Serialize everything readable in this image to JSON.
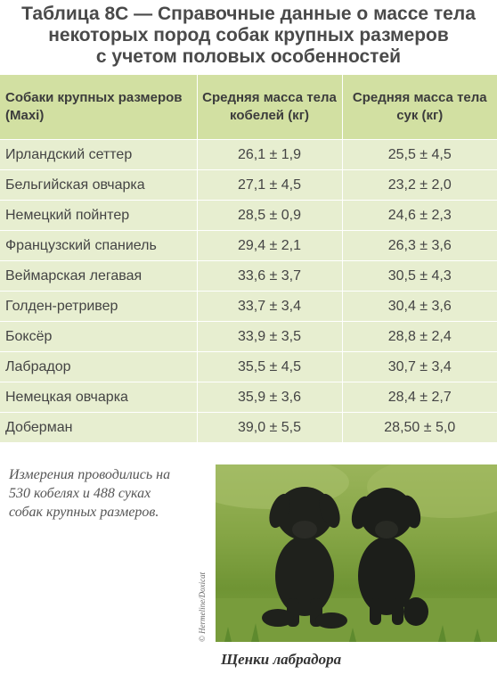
{
  "title": {
    "line1": "Таблица 8С — Справочные данные о массе тела",
    "line2": "некоторых пород собак крупных размеров",
    "line3": "с учетом половых особенностей"
  },
  "table": {
    "headers": {
      "breed": "Собаки крупных размеров (Maxi)",
      "male": "Средняя масса тела кобелей (кг)",
      "female": "Средняя масса тела сук (кг)"
    },
    "rows": [
      {
        "breed": "Ирландский сеттер",
        "male": "26,1 ± 1,9",
        "female": "25,5 ± 4,5"
      },
      {
        "breed": "Бельгийская овчарка",
        "male": "27,1 ± 4,5",
        "female": "23,2 ± 2,0"
      },
      {
        "breed": "Немецкий пойнтер",
        "male": "28,5 ± 0,9",
        "female": "24,6 ± 2,3"
      },
      {
        "breed": "Французский спаниель",
        "male": "29,4 ± 2,1",
        "female": "26,3 ± 3,6"
      },
      {
        "breed": "Веймарская легавая",
        "male": "33,6 ± 3,7",
        "female": "30,5 ± 4,3"
      },
      {
        "breed": "Голден-ретривер",
        "male": "33,7 ± 3,4",
        "female": "30,4 ± 3,6"
      },
      {
        "breed": "Боксёр",
        "male": "33,9 ± 3,5",
        "female": "28,8 ± 2,4"
      },
      {
        "breed": "Лабрадор",
        "male": "35,5 ± 4,5",
        "female": "30,7 ± 3,4"
      },
      {
        "breed": "Немецкая овчарка",
        "male": "35,9 ± 3,6",
        "female": "28,4 ± 2,7"
      },
      {
        "breed": "Доберман",
        "male": "39,0 ± 5,5",
        "female": "28,50 ± 5,0"
      }
    ]
  },
  "note": {
    "line1": "Измерения проводились на",
    "line2": "530 кобелях и 488 суках",
    "line3": "собак крупных размеров."
  },
  "photo": {
    "credit": "© Hermeline/Doxicat",
    "caption": "Щенки лабрадора"
  },
  "colors": {
    "header_bg": "#d2e0a2",
    "row_bg": "#e7eed0",
    "title_text": "#4a4a4a"
  }
}
